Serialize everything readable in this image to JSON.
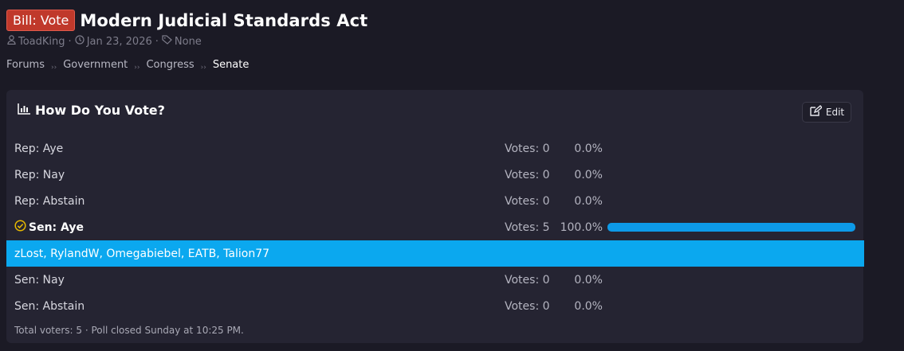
{
  "thread": {
    "prefix": "Bill: Vote",
    "title": "Modern Judicial Standards Act",
    "author": "ToadKing",
    "date": "Jan 23, 2026",
    "tags": "None"
  },
  "breadcrumbs": [
    "Forums",
    "Government",
    "Congress",
    "Senate"
  ],
  "poll": {
    "heading": "How Do You Vote?",
    "edit_label": "Edit",
    "options": [
      {
        "label": "Rep: Aye",
        "votes": "Votes: 0",
        "percent": "0.0%"
      },
      {
        "label": "Rep: Nay",
        "votes": "Votes: 0",
        "percent": "0.0%"
      },
      {
        "label": "Rep: Abstain",
        "votes": "Votes: 0",
        "percent": "0.0%"
      },
      {
        "label": "Sen: Aye",
        "votes": "Votes: 5",
        "percent": "100.0%",
        "selected": true,
        "bar_fraction": 1.0
      },
      {
        "label": "Sen: Nay",
        "votes": "Votes: 0",
        "percent": "0.0%"
      },
      {
        "label": "Sen: Abstain",
        "votes": "Votes: 0",
        "percent": "0.0%"
      }
    ],
    "voters": "zLost, RylandW, Omegabiebel, EATB, Talion77",
    "footer": "Total voters: 5 · Poll closed Sunday at 10:25 PM."
  },
  "colors": {
    "accent": "#0ba8ef",
    "prefix_badge": "#c0392b",
    "selected_check": "#e6b800"
  },
  "icons": {
    "author": "user-icon",
    "date": "clock-icon",
    "tags": "tag-icon",
    "poll": "bar-chart-icon",
    "edit": "edit-icon",
    "selected": "check-circle-icon"
  }
}
